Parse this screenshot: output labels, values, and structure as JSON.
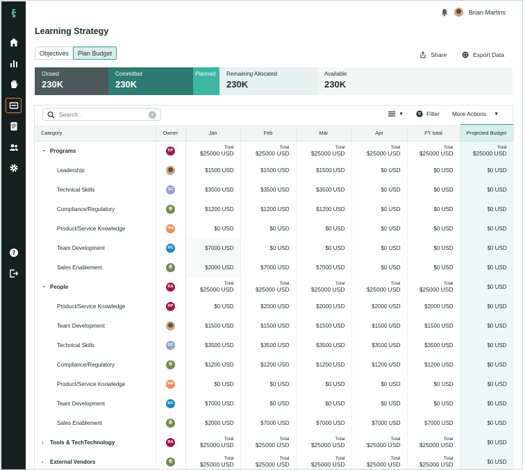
{
  "header": {
    "page_title": "Learning Strategy",
    "user_name": "Brian Martins"
  },
  "tabs": [
    {
      "label": "Objectives",
      "active": false
    },
    {
      "label": "Plan Budget",
      "active": true
    }
  ],
  "actions": {
    "share_label": "Share",
    "export_label": "Export Data"
  },
  "budget": {
    "closed_label": "Closed",
    "closed_value": "230K",
    "committed_label": "Committed",
    "committed_value": "230K",
    "planned_label": "Planned",
    "remaining_label": "Remaining Allocated",
    "remaining_value": "230K",
    "available_label": "Available",
    "available_value": "230K"
  },
  "toolbar": {
    "search_placeholder": "Search..",
    "filter_label": "Filter",
    "more_actions_label": "More Actions"
  },
  "table": {
    "headers": [
      "Category",
      "Owner",
      "Jan",
      "Feb",
      "Mar",
      "Apr",
      "FY total",
      "Projected Budget"
    ],
    "rows": [
      {
        "type": "group",
        "expanded": true,
        "label": "Programs",
        "owner": "HP",
        "owner_style": "HP",
        "total_label": "Total",
        "cells": [
          "$25000 USD",
          "$25000 USD",
          "$25000 USD",
          "$25000 USD",
          "$25000 USD",
          "$25000 USD"
        ]
      },
      {
        "type": "item",
        "label": "Leadership",
        "owner": "",
        "owner_style": "photo",
        "cells": [
          "$1500 USD",
          "$1500 USD",
          "$1500 USD",
          "$0 USD",
          "$0 USD",
          "$0 USD"
        ]
      },
      {
        "type": "item",
        "label": "Technical Skills",
        "owner": "GC",
        "owner_style": "GC",
        "cells": [
          "$3500 USD",
          "$3500 USD",
          "$3500 USD",
          "$0 USD",
          "$0 USD",
          "$0 USD"
        ]
      },
      {
        "type": "item",
        "label": "Compliance/Regulatory",
        "owner": "",
        "owner_style": "photo2",
        "cells": [
          "$1200 USD",
          "$1200 USD",
          "$1200 USD",
          "$0 USD",
          "$0 USD",
          "$0 USD"
        ]
      },
      {
        "type": "item",
        "label": "Product/Service Knowledge",
        "owner": "RM",
        "owner_style": "RM",
        "cells": [
          "$0 USD",
          "$0 USD",
          "$0 USD",
          "$0 USD",
          "$0 USD",
          "$0 USD"
        ]
      },
      {
        "type": "item",
        "label": "Team Development",
        "owner": "DC",
        "owner_style": "DC",
        "cells": [
          "$7000 USD",
          "$0 USD",
          "$0 USD",
          "$0 USD",
          "$0 USD",
          "$0 USD"
        ]
      },
      {
        "type": "item",
        "label": "Sales Enablement",
        "owner": "",
        "owner_style": "photo2",
        "cells": [
          "$2000 USD",
          "$7000 USD",
          "$7000 USD",
          "$0 USD",
          "$0 USD",
          "$0 USD"
        ]
      },
      {
        "type": "group",
        "expanded": true,
        "label": "People",
        "owner": "RA",
        "owner_style": "RA",
        "total_label": "Total",
        "cells": [
          "$25000 USD",
          "$25000 USD",
          "$25000 USD",
          "$25000 USD",
          "$25000 USD",
          "$0 USD"
        ]
      },
      {
        "type": "item",
        "label": "Product/Service Knowledge",
        "owner": "HP",
        "owner_style": "HP",
        "cells": [
          "$0 USD",
          "$2000 USD",
          "$2000 USD",
          "$2000 USD",
          "$2000 USD",
          "$0 USD"
        ]
      },
      {
        "type": "item",
        "label": "Team Development",
        "owner": "",
        "owner_style": "photo",
        "cells": [
          "$1500 USD",
          "$1500 USD",
          "$1500 USD",
          "$1500 USD",
          "$1500 USD",
          "$0 USD"
        ]
      },
      {
        "type": "item",
        "label": "Technical Skills",
        "owner": "GC",
        "owner_style": "GC",
        "cells": [
          "$3500 USD",
          "$3500 USD",
          "$3500 USD",
          "$3500 USD",
          "$3500 USD",
          "$0 USD"
        ]
      },
      {
        "type": "item",
        "label": "Compliance/Regulatory",
        "owner": "",
        "owner_style": "photo2",
        "cells": [
          "$1200 USD",
          "$1200 USD",
          "$1200 USD",
          "$1200 USD",
          "$1200 USD",
          "$0 USD"
        ]
      },
      {
        "type": "item",
        "label": "Product/Service Knowledge",
        "owner": "RM",
        "owner_style": "RM",
        "cells": [
          "$0 USD",
          "$0 USD",
          "$0 USD",
          "$0 USD",
          "$0 USD",
          "$0 USD"
        ]
      },
      {
        "type": "item",
        "label": "Team Development",
        "owner": "DC",
        "owner_style": "DC",
        "cells": [
          "$7000 USD",
          "$0 USD",
          "$0 USD",
          "$0 USD",
          "$0 USD",
          "$0 USD"
        ]
      },
      {
        "type": "item",
        "label": "Sales Enablement",
        "owner": "",
        "owner_style": "photo2",
        "cells": [
          "$2000 USD",
          "$7000 USD",
          "$7000 USD",
          "$7000 USD",
          "$7000 USD",
          "$0 USD"
        ]
      },
      {
        "type": "group",
        "expanded": false,
        "label": "Tools & TechTechnology",
        "owner": "RA",
        "owner_style": "RA",
        "total_label": "Total",
        "cells": [
          "$25000 USD",
          "$25000 USD",
          "$25000 USD",
          "$25000 USD",
          "$25000 USD",
          "$0 USD"
        ]
      },
      {
        "type": "group",
        "expanded": false,
        "label": "External Vendors",
        "owner": "",
        "owner_style": "photo2",
        "total_label": "Total",
        "cells": [
          "$25000 USD",
          "$25000 USD",
          "$25000 USD",
          "$25000 USD",
          "$25000 USD",
          "$0 USD"
        ]
      }
    ]
  },
  "colors": {
    "sidebar_bg": "#16201f",
    "closed": "#4d5a5c",
    "committed": "#2d7b72",
    "planned": "#3cb6a2",
    "accent": "#3a9c8c",
    "active_nav": "#e0853a"
  }
}
